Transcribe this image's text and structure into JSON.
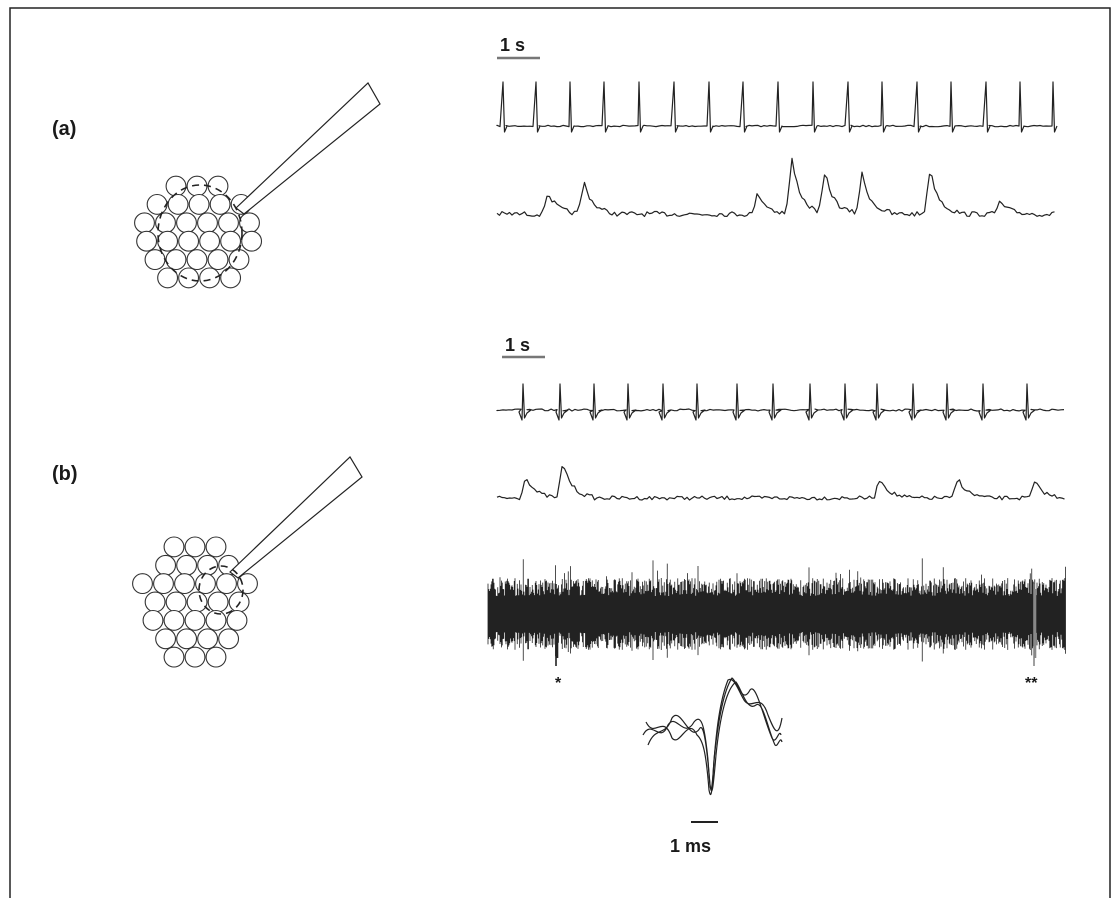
{
  "panels": [
    {
      "id": "a",
      "label": "(a)",
      "scale_label": "1 s"
    },
    {
      "id": "b",
      "label": "(b)",
      "scale_label": "1 s",
      "marker_single": "*",
      "marker_double": "**",
      "waveform_scale_label": "1 ms"
    }
  ],
  "colors": {
    "trace": "#222222",
    "scale_bar": "#777777",
    "highlight_spike": "#888888"
  }
}
